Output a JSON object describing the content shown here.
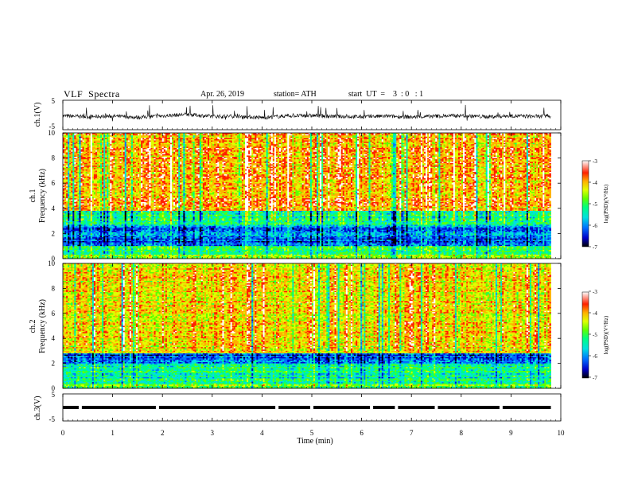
{
  "header": {
    "title": "VLF  Spectra",
    "date": "Apr. 26, 2019",
    "station": "station= ATH",
    "start_ut": "start  UT  =    3  : 0   : 1"
  },
  "colors": {
    "colormap": [
      "#000000",
      "#0000c8",
      "#0070ff",
      "#00e0e0",
      "#00ff80",
      "#60ff00",
      "#e0ff00",
      "#ffb000",
      "#ff2000",
      "#ffffff"
    ],
    "trace": "#000000"
  },
  "chart_data": [
    {
      "type": "line",
      "panel": "waveform-ch1",
      "ylabel": "ch.1(V)",
      "ylim": [
        -5,
        5
      ],
      "yticks": [
        5,
        -5
      ],
      "y_tick_labels": [
        "5",
        "-5"
      ],
      "xlim": [
        0,
        10
      ],
      "x": [
        0,
        0.5,
        1,
        1.5,
        2,
        2.5,
        3,
        3.5,
        4,
        4.5,
        5,
        5.5,
        6,
        6.5,
        7,
        7.5,
        8,
        8.5,
        9,
        9.5,
        9.8
      ],
      "y": [
        -0.3,
        -0.6,
        -0.4,
        -0.8,
        -0.3,
        0.2,
        -0.5,
        -0.4,
        -0.9,
        -0.3,
        -0.2,
        -0.5,
        -0.6,
        -0.4,
        -0.7,
        -0.4,
        -0.2,
        -0.6,
        -0.3,
        -0.5,
        -0.4
      ],
      "envelope": 1.3
    },
    {
      "type": "heatmap",
      "panel": "spectrogram-ch1",
      "ylabel": "Frequency  (kHz)",
      "channel_label": "ch.1",
      "xlim": [
        0,
        10
      ],
      "data_xmax": 9.8,
      "ylim": [
        0,
        10
      ],
      "yticks": [
        0,
        2,
        4,
        6,
        8,
        10
      ],
      "y_tick_labels": [
        "0",
        "2",
        "4",
        "6",
        "8",
        "10"
      ],
      "color_range": [
        -7,
        -3
      ],
      "colorbar_ticks": [
        "-3",
        "-4",
        "-5",
        "-6",
        "-7"
      ],
      "colorbar_label": "log(PSD)(V²/Hz)",
      "bands_khz": [
        {
          "from": 0,
          "to": 0.3,
          "log_psd": -4.6
        },
        {
          "from": 0.3,
          "to": 1.0,
          "log_psd": -5.2
        },
        {
          "from": 1.0,
          "to": 2.6,
          "log_psd": -6.0
        },
        {
          "from": 2.6,
          "to": 3.8,
          "log_psd": -5.3
        },
        {
          "from": 3.8,
          "to": 10,
          "log_psd": -4.0
        }
      ]
    },
    {
      "type": "heatmap",
      "panel": "spectrogram-ch2",
      "ylabel": "Frequency  (kHz)",
      "channel_label": "ch.2",
      "xlim": [
        0,
        10
      ],
      "data_xmax": 9.8,
      "ylim": [
        0,
        10
      ],
      "yticks": [
        0,
        2,
        4,
        6,
        8,
        10
      ],
      "y_tick_labels": [
        "0",
        "2",
        "4",
        "6",
        "8",
        "10"
      ],
      "color_range": [
        -7,
        -3
      ],
      "colorbar_ticks": [
        "-3",
        "-4",
        "-5",
        "-6",
        "-7"
      ],
      "colorbar_label": "log(PSD)(V²/Hz)",
      "bands_khz": [
        {
          "from": 0,
          "to": 0.4,
          "log_psd": -4.8
        },
        {
          "from": 0.4,
          "to": 2.0,
          "log_psd": -5.3
        },
        {
          "from": 2.0,
          "to": 2.8,
          "log_psd": -6.1
        },
        {
          "from": 2.8,
          "to": 10,
          "log_psd": -4.2
        }
      ]
    },
    {
      "type": "line",
      "panel": "waveform-ch3",
      "ylabel": "ch.3(V)",
      "ylim": [
        -5,
        5
      ],
      "yticks": [
        5,
        -5
      ],
      "y_tick_labels": [
        "5",
        "-5"
      ],
      "xlim": [
        0,
        10
      ],
      "x": [
        0,
        9.8
      ],
      "y": [
        0,
        0
      ],
      "note_gaps_at_min": [
        0.35,
        1.9,
        4.3,
        5.0,
        6.2,
        6.7,
        7.5,
        8.8
      ]
    }
  ],
  "x_axis": {
    "label": "Time  (min)",
    "ticks": [
      0,
      1,
      2,
      3,
      4,
      5,
      6,
      7,
      8,
      9,
      10
    ],
    "tick_labels": [
      "0",
      "1",
      "2",
      "3",
      "4",
      "5",
      "6",
      "7",
      "8",
      "9",
      "10"
    ]
  }
}
